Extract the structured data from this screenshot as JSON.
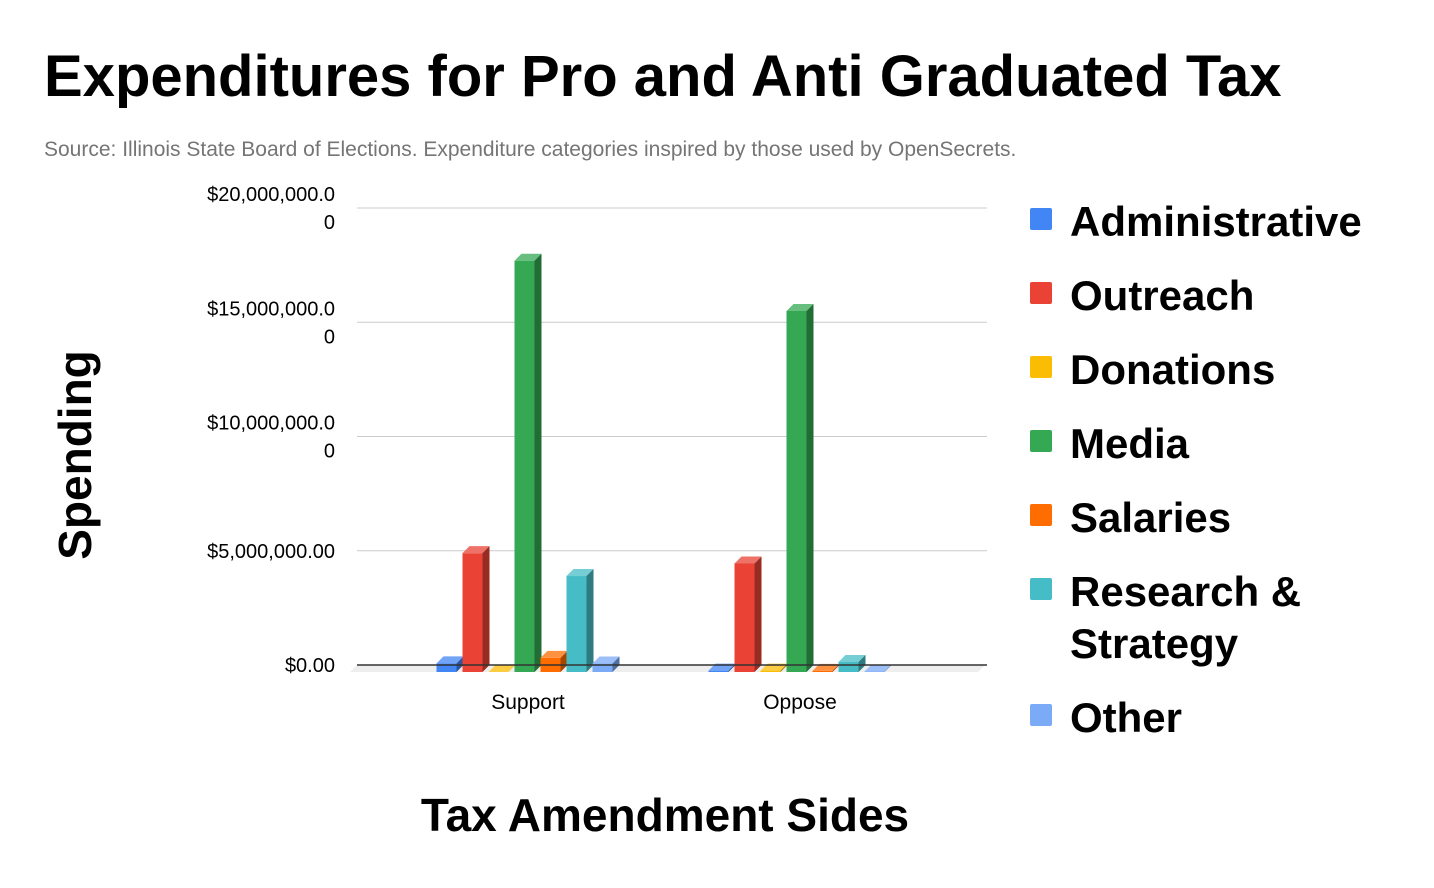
{
  "chart_data": {
    "type": "bar",
    "title": "Expenditures for Pro and Anti Graduated Tax",
    "subtitle": "Source: Illinois State Board of Elections. Expenditure categories inspired by those used by OpenSecrets.",
    "xlabel": "Tax Amendment Sides",
    "ylabel": "Spending",
    "categories": [
      "Support",
      "Oppose"
    ],
    "ylim": [
      0,
      20000000
    ],
    "yticks": [
      {
        "value": 0,
        "line1": "$0.00",
        "line2": ""
      },
      {
        "value": 5000000,
        "line1": "$5,000,000.00",
        "line2": ""
      },
      {
        "value": 10000000,
        "line1": "$10,000,000.0",
        "line2": "0"
      },
      {
        "value": 15000000,
        "line1": "$15,000,000.0",
        "line2": "0"
      },
      {
        "value": 20000000,
        "line1": "$20,000,000.0",
        "line2": "0"
      }
    ],
    "grid": true,
    "legend_position": "right",
    "series": [
      {
        "name": "Administrative",
        "color": "#4285F4",
        "values": [
          380000,
          60000
        ]
      },
      {
        "name": "Outreach",
        "color": "#EA4335",
        "values": [
          5200000,
          4750000
        ]
      },
      {
        "name": "Donations",
        "color": "#FBBC04",
        "values": [
          0,
          60000
        ]
      },
      {
        "name": "Media",
        "color": "#34A853",
        "values": [
          18000000,
          15800000
        ]
      },
      {
        "name": "Salaries",
        "color": "#FF6D01",
        "values": [
          620000,
          50000
        ]
      },
      {
        "name": "Research & Strategy",
        "color": "#46BDC6",
        "values": [
          4200000,
          440000
        ]
      },
      {
        "name": "Other",
        "color": "#7BAAF7",
        "values": [
          370000,
          20000
        ]
      }
    ]
  }
}
